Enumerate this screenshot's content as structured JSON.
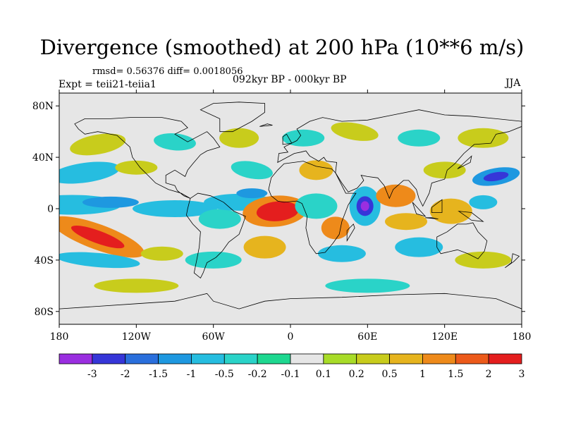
{
  "title": "Divergence (smoothed) at 200 hPa (10**6 m/s)",
  "stats_label": "rmsd= 0.56376 diff= 0.0018056",
  "experiment_label": "Expt = teii21-teiia1",
  "center_label": "092kyr BP - 000kyr BP",
  "season_label": "JJA",
  "map": {
    "projection": "cylindrical-equidistant",
    "lon_range": [
      -180,
      180
    ],
    "lat_range": [
      -90,
      90
    ],
    "lat_ticks": [
      {
        "value": 80,
        "label": "80N"
      },
      {
        "value": 40,
        "label": "40N"
      },
      {
        "value": 0,
        "label": "0"
      },
      {
        "value": -40,
        "label": "40S"
      },
      {
        "value": -80,
        "label": "80S"
      }
    ],
    "lon_ticks": [
      {
        "value": -180,
        "label": "180"
      },
      {
        "value": -120,
        "label": "120W"
      },
      {
        "value": -60,
        "label": "60W"
      },
      {
        "value": 0,
        "label": "0"
      },
      {
        "value": 60,
        "label": "60E"
      },
      {
        "value": 120,
        "label": "120E"
      },
      {
        "value": 180,
        "label": "180"
      }
    ],
    "background_color": "#e6e6e6",
    "coastline_color": "#000000"
  },
  "colorbar": {
    "labels": [
      "-3",
      "-2",
      "-1.5",
      "-1",
      "-0.5",
      "-0.2",
      "-0.1",
      "0.1",
      "0.2",
      "0.5",
      "1",
      "1.5",
      "2",
      "3"
    ],
    "colors": [
      "#9a2ee0",
      "#3636d8",
      "#2a6fdc",
      "#1e98e0",
      "#26bde0",
      "#2ad3c8",
      "#1ed890",
      "#e6e6e6",
      "#a8dc28",
      "#c8cc1c",
      "#e6b41e",
      "#ee8a1a",
      "#ec5a1a",
      "#e41e1e"
    ]
  },
  "features": [
    {
      "name": "positive-divergence-central-atlantic",
      "lon": -10,
      "lat": -2,
      "value": 3
    },
    {
      "name": "negative-divergence-indian-ocean",
      "lon": 58,
      "lat": 2,
      "value": -3
    },
    {
      "name": "positive-divergence-south-pacific",
      "lon": -150,
      "lat": -22,
      "value": 2
    },
    {
      "name": "negative-divergence-south-pacific",
      "lon": -148,
      "lat": -40,
      "value": -1
    },
    {
      "name": "positive-divergence-india",
      "lon": 82,
      "lat": 10,
      "value": 1
    },
    {
      "name": "negative-divergence-west-pacific",
      "lon": 150,
      "lat": 22,
      "value": -1
    }
  ]
}
